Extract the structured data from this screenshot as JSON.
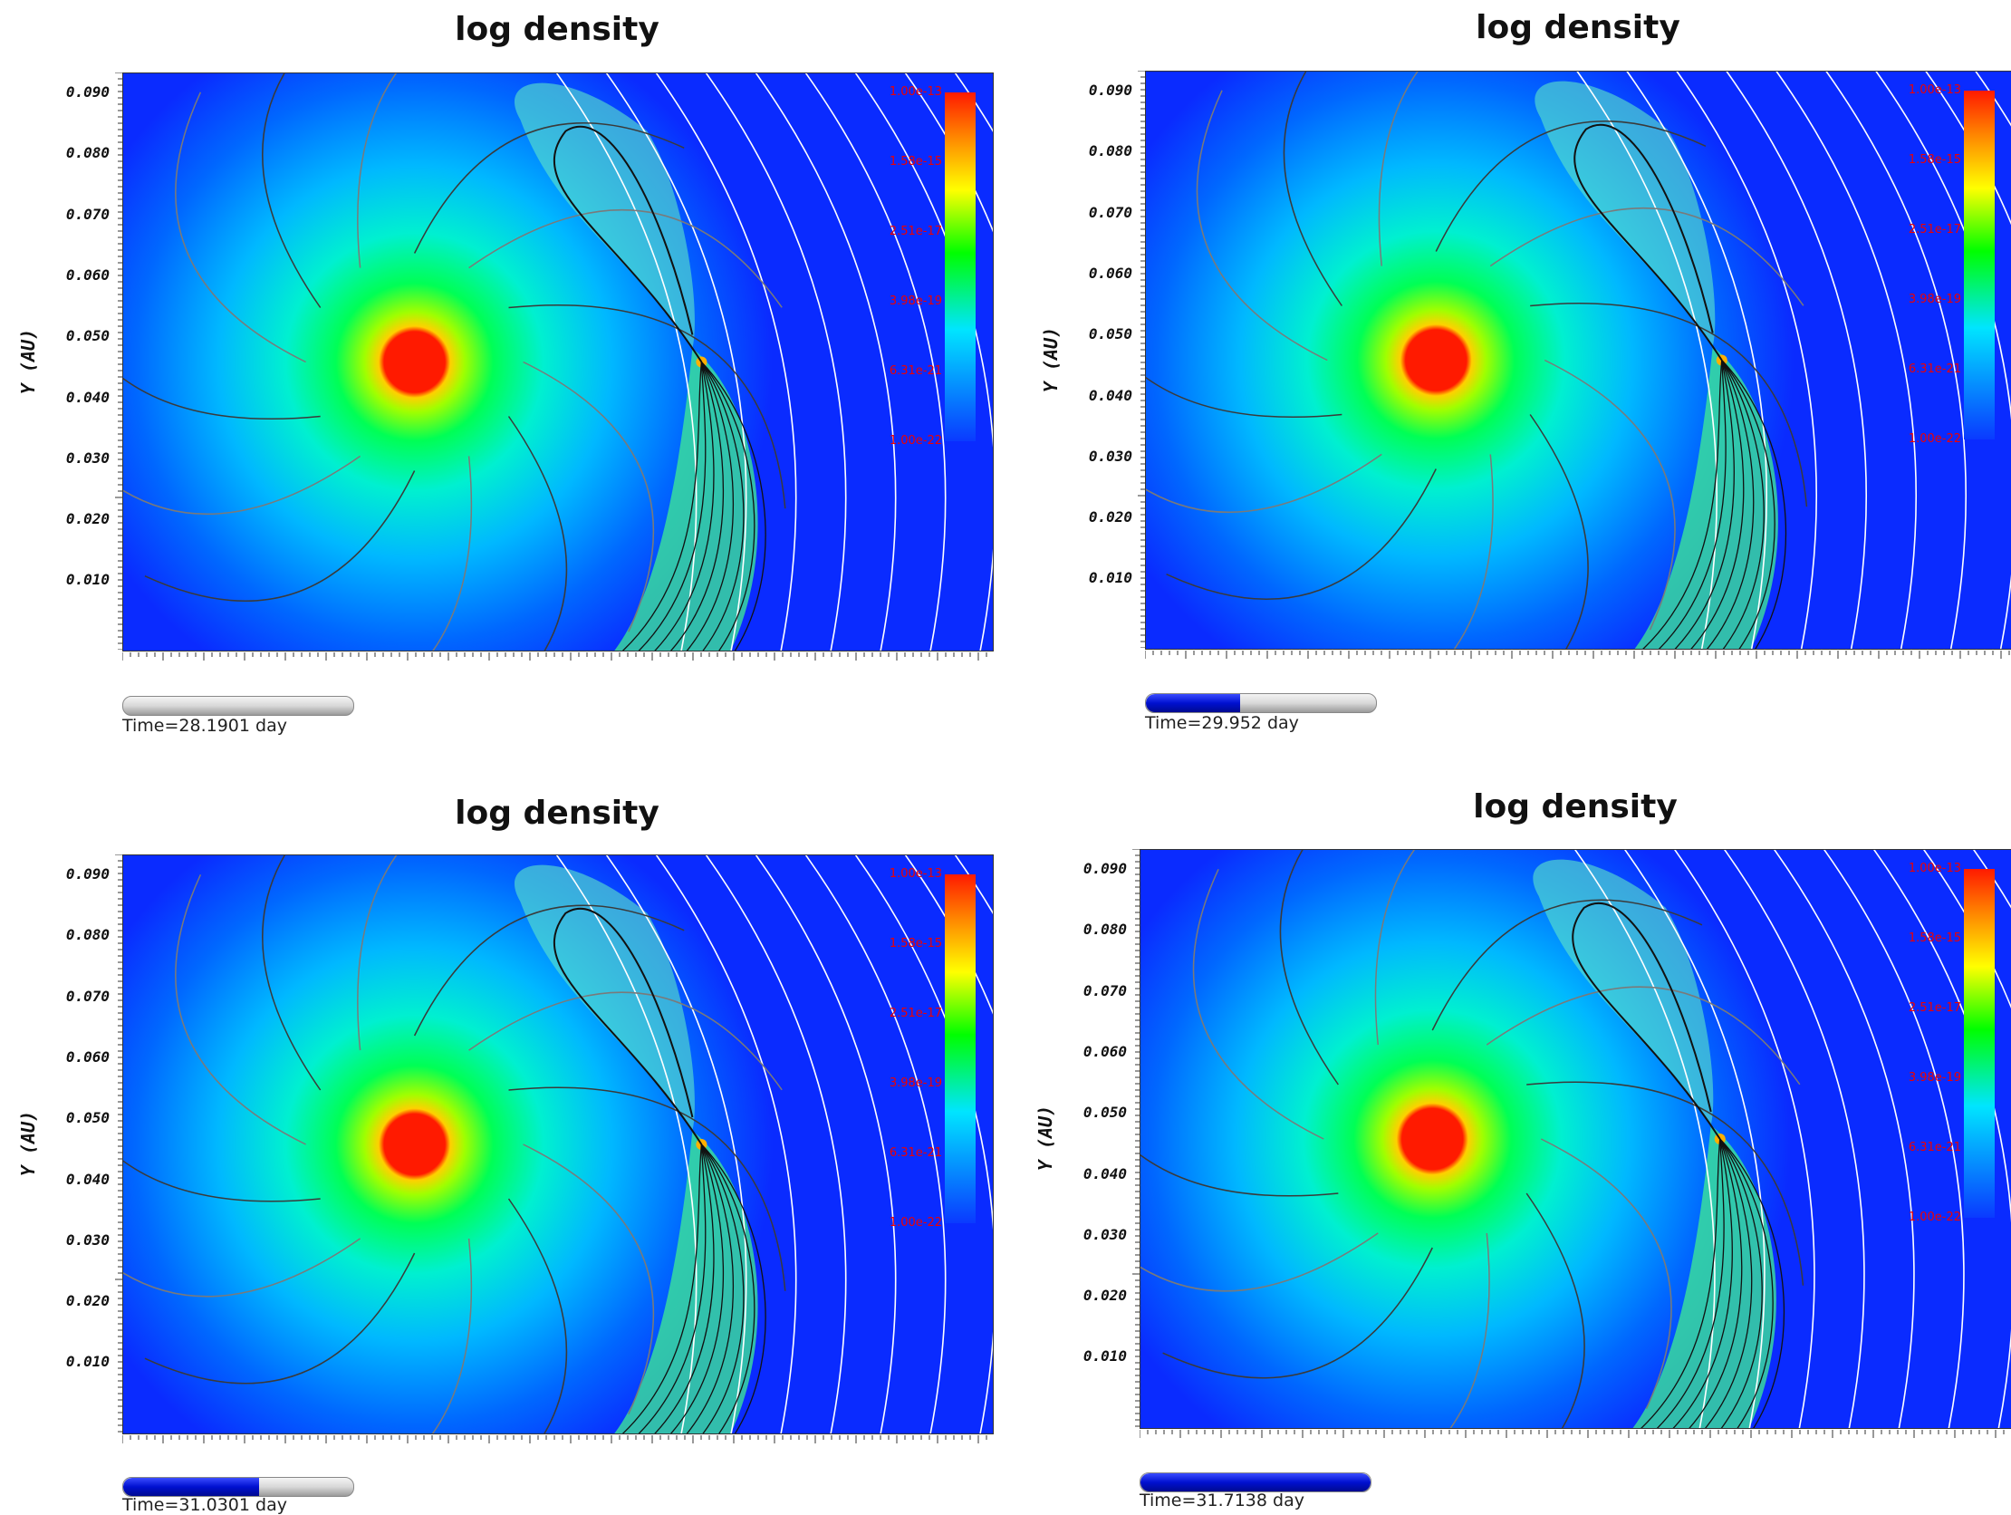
{
  "panels": [
    {
      "title": "log density",
      "ylabel": "Y (AU)",
      "yticks": [
        "0.090",
        "0.080",
        "0.070",
        "0.060",
        "0.050",
        "0.040",
        "0.030",
        "0.020",
        "0.010"
      ],
      "colorbar": [
        "1.00e-13",
        "1.58e-15",
        "2.51e-17",
        "3.98e-19",
        "6.31e-21",
        "1.00e-22"
      ],
      "time": "Time=28.1901 day",
      "progress": 0.0
    },
    {
      "title": "log density",
      "ylabel": "Y (AU)",
      "yticks": [
        "0.090",
        "0.080",
        "0.070",
        "0.060",
        "0.050",
        "0.040",
        "0.030",
        "0.020",
        "0.010"
      ],
      "colorbar": [
        "1.00e-13",
        "1.58e-15",
        "2.51e-17",
        "3.98e-19",
        "6.31e-21",
        "1.00e-22"
      ],
      "time": "Time=29.952 day",
      "progress": 0.41
    },
    {
      "title": "log density",
      "ylabel": "Y (AU)",
      "yticks": [
        "0.090",
        "0.080",
        "0.070",
        "0.060",
        "0.050",
        "0.040",
        "0.030",
        "0.020",
        "0.010"
      ],
      "colorbar": [
        "1.00e-13",
        "1.58e-15",
        "2.51e-17",
        "3.98e-19",
        "6.31e-21",
        "1.00e-22"
      ],
      "time": "Time=31.0301 day",
      "progress": 0.59
    },
    {
      "title": "log density",
      "ylabel": "Y (AU)",
      "yticks": [
        "0.090",
        "0.080",
        "0.070",
        "0.060",
        "0.050",
        "0.040",
        "0.030",
        "0.020",
        "0.010"
      ],
      "colorbar": [
        "1.00e-13",
        "1.58e-15",
        "2.51e-17",
        "3.98e-19",
        "6.31e-21",
        "1.00e-22"
      ],
      "time": "Time=31.7138 day",
      "progress": 1.0
    }
  ],
  "colors": {
    "low": "#0a2bff",
    "mid": "#00ff66",
    "high": "#ff1a00",
    "label": "#ee0000"
  }
}
